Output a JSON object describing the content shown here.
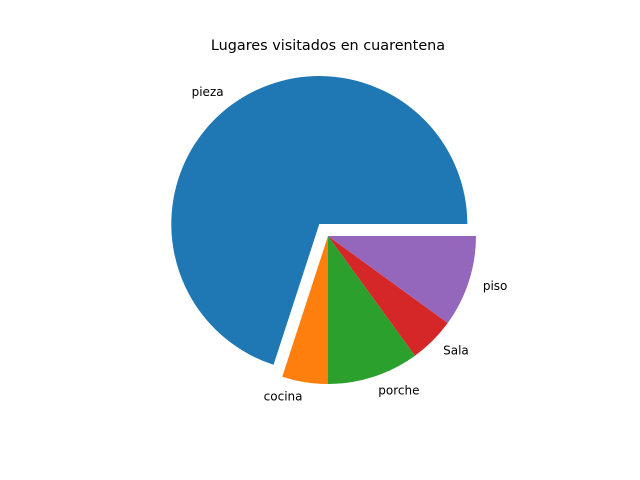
{
  "chart_data": {
    "type": "pie",
    "title": "Lugares visitados en cuarentena",
    "labels": [
      "pieza",
      "cocina",
      "porche",
      "Sala",
      "piso"
    ],
    "values": [
      70,
      5,
      10,
      5,
      10
    ],
    "colors": [
      "#1f77b4",
      "#ff7f0e",
      "#2ca02c",
      "#d62728",
      "#9467bd"
    ],
    "explode": [
      0.1,
      0,
      0,
      0,
      0
    ],
    "start_angle_deg": 0,
    "direction": "counterclockwise",
    "legend": "none"
  }
}
